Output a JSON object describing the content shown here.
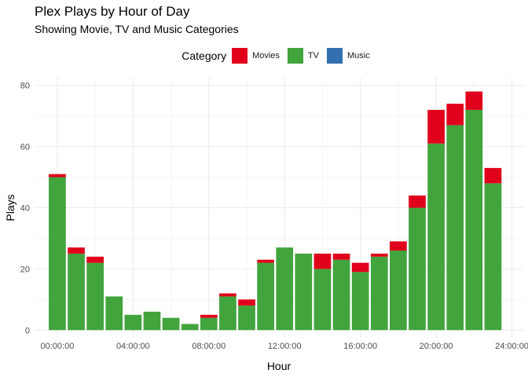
{
  "chart_data": {
    "type": "bar",
    "stacked": true,
    "title": "Plex Plays by Hour of Day",
    "subtitle": "Showing Movie, TV and Music Categories",
    "xlabel": "Hour",
    "ylabel": "Plays",
    "legend_title": "Category",
    "legend_position": "top",
    "grid": true,
    "x_tick_labels": [
      "00:00:00",
      "04:00:00",
      "08:00:00",
      "12:00:00",
      "16:00:00",
      "20:00:00",
      "24:00:00"
    ],
    "x_tick_hours": [
      0,
      4,
      8,
      12,
      16,
      20,
      24
    ],
    "xlim": [
      -1.2,
      24.6
    ],
    "y_ticks": [
      0,
      20,
      40,
      60,
      80
    ],
    "ylim": [
      -2.5,
      82.5
    ],
    "hours": [
      0,
      1,
      2,
      3,
      4,
      5,
      6,
      7,
      8,
      9,
      10,
      11,
      12,
      13,
      14,
      15,
      16,
      17,
      18,
      19,
      20,
      21,
      22,
      23
    ],
    "series": [
      {
        "name": "TV",
        "color": "#41A43C",
        "values": [
          50,
          25,
          22,
          11,
          5,
          6,
          4,
          2,
          4,
          11,
          8,
          22,
          27,
          25,
          20,
          23,
          19,
          24,
          26,
          40,
          61,
          67,
          72,
          48
        ]
      },
      {
        "name": "Movies",
        "color": "#E0001B",
        "values": [
          1,
          2,
          2,
          0,
          0,
          0,
          0,
          0,
          1,
          1,
          2,
          1,
          0,
          0,
          5,
          2,
          3,
          1,
          3,
          4,
          11,
          7,
          6,
          5
        ]
      },
      {
        "name": "Music",
        "color": "#3370B0",
        "values": [
          0,
          0,
          0,
          0,
          0,
          0,
          0,
          0,
          0,
          0,
          0,
          0,
          0,
          0,
          0,
          0,
          0,
          0,
          0,
          0,
          0,
          0,
          0,
          0
        ]
      }
    ],
    "legend_order": [
      "Movies",
      "TV",
      "Music"
    ]
  }
}
